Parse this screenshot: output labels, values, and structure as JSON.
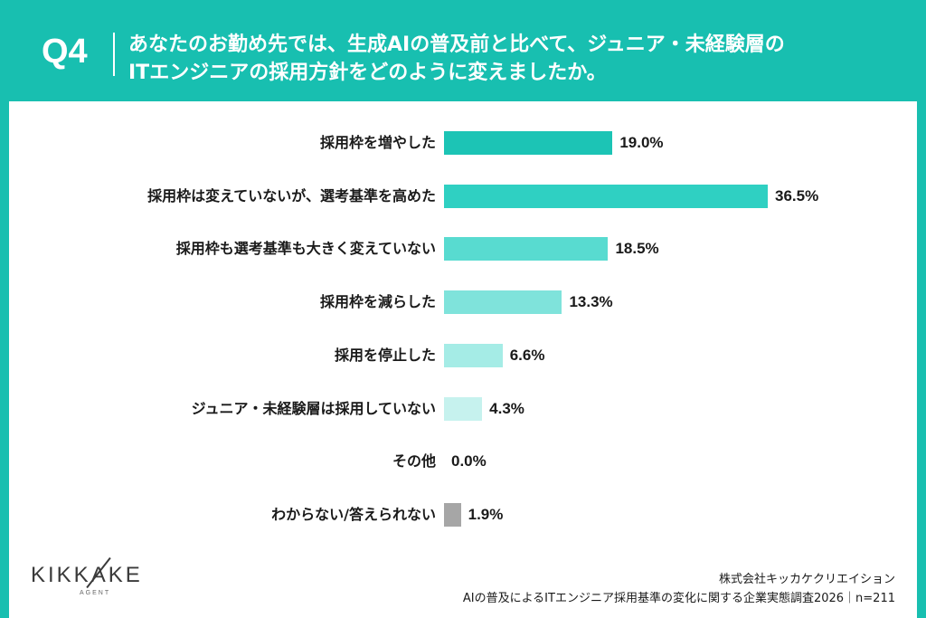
{
  "header": {
    "question_number": "Q4",
    "question_line1": "あなたのお勤め先では、生成AIの普及前と比べて、ジュニア・未経験層の",
    "question_line2": "ITエンジニアの採用方針をどのように変えましたか。"
  },
  "chart_data": {
    "type": "bar",
    "orientation": "horizontal",
    "unit": "%",
    "categories": [
      "採用枠を増やした",
      "採用枠は変えていないが、選考基準を高めた",
      "採用枠も選考基準も大きく変えていない",
      "採用枠を減らした",
      "採用を停止した",
      "ジュニア・未経験層は採用していない",
      "その他",
      "わからない/答えられない"
    ],
    "values": [
      19.0,
      36.5,
      18.5,
      13.3,
      6.6,
      4.3,
      0.0,
      1.9
    ],
    "value_labels": [
      "19.0%",
      "36.5%",
      "18.5%",
      "13.3%",
      "6.6%",
      "4.3%",
      "0.0%",
      "1.9%"
    ],
    "colors": [
      "#1cc4b5",
      "#2fd0c2",
      "#58dbd0",
      "#7fe3db",
      "#a5ece6",
      "#c6f2ee",
      "#d9f5f2",
      "#a6a6a6"
    ],
    "xlim": [
      0,
      37
    ],
    "grid": false,
    "legend": "none"
  },
  "logo": {
    "name": "KIKKAKE",
    "sub": "AGENT"
  },
  "source": {
    "company": "株式会社キッカケクリエイション",
    "survey": "AIの普及によるITエンジニア採用基準の変化に関する企業実態調査2026｜n=211"
  }
}
